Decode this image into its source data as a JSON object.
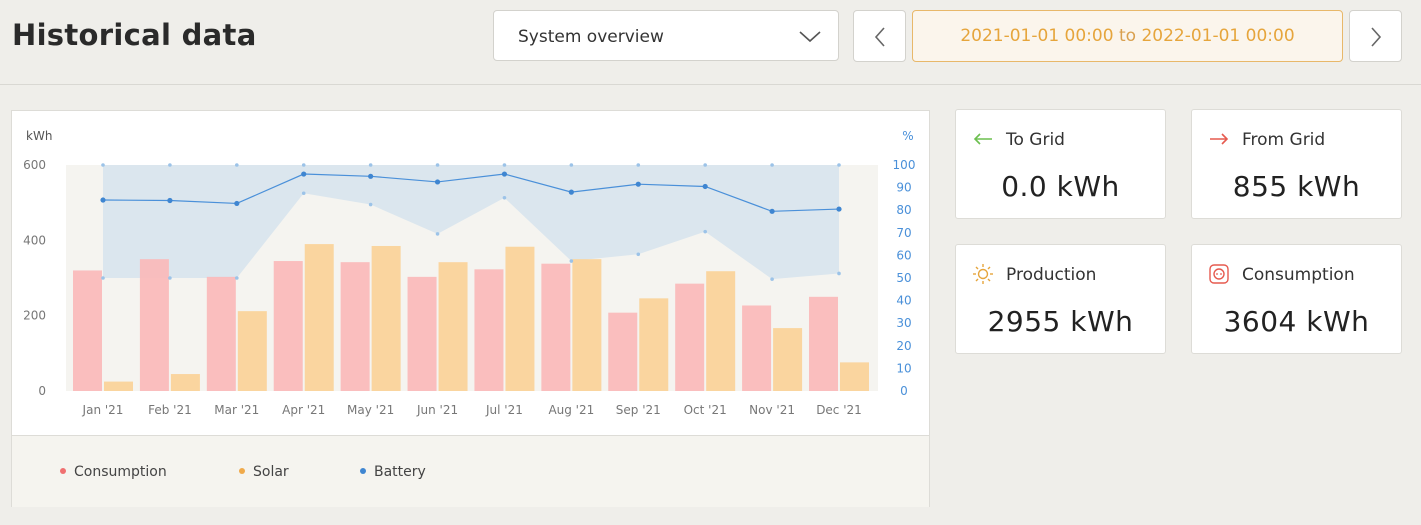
{
  "header": {
    "title": "Historical data",
    "view_select": {
      "value": "System overview"
    },
    "date_range": {
      "from": "2021-01-01 00:00",
      "to_word": "to",
      "to": "2022-01-01 00:00"
    }
  },
  "stats": {
    "to_grid": {
      "label": "To Grid",
      "value": "0.0 kWh",
      "icon": "arrow-left-icon"
    },
    "from_grid": {
      "label": "From Grid",
      "value": "855 kWh",
      "icon": "arrow-right-icon"
    },
    "production": {
      "label": "Production",
      "value": "2955 kWh",
      "icon": "sun-icon"
    },
    "consumption": {
      "label": "Consumption",
      "value": "3604 kWh",
      "icon": "socket-icon"
    }
  },
  "colors": {
    "consumption": "#fbb8b8",
    "solar": "#fad59f",
    "battery": "#4a90d9",
    "battery_band": "#dbe6ee",
    "accent": "#e6a53c"
  },
  "chart_data": {
    "type": "bar",
    "left_axis_unit": "kWh",
    "right_axis_unit": "%",
    "categories": [
      "Jan '21",
      "Feb '21",
      "Mar '21",
      "Apr '21",
      "May '21",
      "Jun '21",
      "Jul '21",
      "Aug '21",
      "Sep '21",
      "Oct '21",
      "Nov '21",
      "Dec '21"
    ],
    "ylim": [
      0,
      600
    ],
    "y_ticks": [
      0,
      200,
      400,
      600
    ],
    "y2lim": [
      0,
      100
    ],
    "y2_ticks": [
      0,
      10,
      20,
      30,
      40,
      50,
      60,
      70,
      80,
      90,
      100
    ],
    "series": [
      {
        "name": "Consumption",
        "axis": "left",
        "kind": "bar",
        "values": [
          320,
          350,
          303,
          345,
          342,
          303,
          323,
          338,
          208,
          285,
          227,
          250
        ]
      },
      {
        "name": "Solar",
        "axis": "left",
        "kind": "bar",
        "values": [
          25,
          45,
          212,
          390,
          385,
          342,
          383,
          350,
          246,
          318,
          167,
          76
        ]
      },
      {
        "name": "Battery",
        "axis": "right",
        "kind": "line",
        "values": [
          84.5,
          84.3,
          83,
          96,
          95,
          92.5,
          96,
          88,
          91.5,
          90.5,
          79.5,
          80.5
        ],
        "band_max": [
          100,
          100,
          100,
          100,
          100,
          100,
          100,
          100,
          100,
          100,
          100,
          100
        ],
        "band_min": [
          50,
          50,
          50,
          87.5,
          82.5,
          69.5,
          85.5,
          57.5,
          60.5,
          70.5,
          49.5,
          52
        ]
      }
    ],
    "legend": [
      "Consumption",
      "Solar",
      "Battery"
    ],
    "grid": false,
    "legend_position": "bottom"
  }
}
